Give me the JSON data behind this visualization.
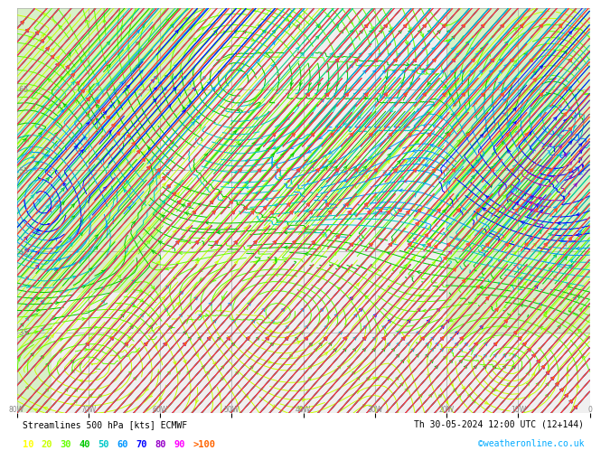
{
  "title_left": "Streamlines 500 hPa [kts] ECMWF",
  "title_right": "Th 30-05-2024 12:00 UTC (12+144)",
  "watermark": "©weatheronline.co.uk",
  "legend_values": [
    "10",
    "20",
    "30",
    "40",
    "50",
    "60",
    "70",
    "80",
    "90",
    ">100"
  ],
  "legend_colors": [
    "#ffff00",
    "#c8ff00",
    "#64ff00",
    "#00c800",
    "#00c8c8",
    "#0096ff",
    "#0000ff",
    "#9600c8",
    "#ff00ff",
    "#ff6400"
  ],
  "bg_color": "#ffffff",
  "map_bg": "#f0f0f0",
  "land_color": "#d8f0c8",
  "axis_label_color": "#888888",
  "title_color": "#000000",
  "watermark_color": "#00aaff",
  "lon_min": -80,
  "lon_max": 0,
  "lat_min": 25,
  "lat_max": 75,
  "lon_ticks": [
    -80,
    -70,
    -60,
    -50,
    -40,
    -30,
    -20,
    -10,
    0
  ],
  "grid_color": "#aaaaaa",
  "grid_linewidth": 0.5
}
